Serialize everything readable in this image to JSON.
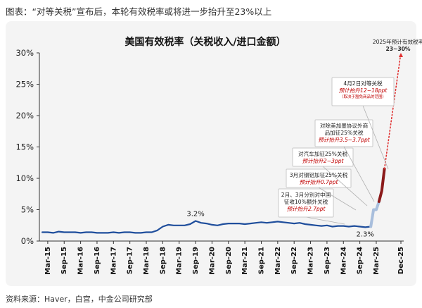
{
  "caption": "图表：“对等关税”宣布后，本轮有效税率或将进一步抬升至23%以上",
  "source": "资料来源：Haver，白宫，中金公司研究部",
  "chart_data": {
    "type": "line",
    "title": "美国有效税率（关税收入/进口金额）",
    "ylim": [
      0,
      30
    ],
    "y_ticks": [
      "0%",
      "5%",
      "10%",
      "15%",
      "20%",
      "25%",
      "30%"
    ],
    "x_ticks": [
      "Mar-15",
      "Sep-15",
      "Mar-16",
      "Sep-16",
      "Mar-17",
      "Sep-17",
      "Mar-18",
      "Sep-18",
      "Mar-19",
      "Sep-19",
      "Mar-20",
      "Sep-20",
      "Mar-21",
      "Sep-21",
      "Mar-22",
      "Sep-22",
      "Mar-23",
      "Sep-23",
      "Mar-24",
      "Sep-24",
      "Mar-25",
      "Dec-25"
    ],
    "grid": false,
    "series": [
      {
        "role": "history",
        "color": "#1f4e9c",
        "x": [
          "2015-01",
          "2015-03",
          "2015-05",
          "2015-07",
          "2015-09",
          "2015-11",
          "2016-01",
          "2016-03",
          "2016-05",
          "2016-07",
          "2016-09",
          "2016-11",
          "2017-01",
          "2017-03",
          "2017-05",
          "2017-07",
          "2017-09",
          "2017-11",
          "2018-01",
          "2018-03",
          "2018-05",
          "2018-07",
          "2018-09",
          "2018-11",
          "2019-01",
          "2019-03",
          "2019-05",
          "2019-07",
          "2019-09",
          "2019-11",
          "2020-01",
          "2020-03",
          "2020-05",
          "2020-07",
          "2020-09",
          "2020-11",
          "2021-01",
          "2021-03",
          "2021-05",
          "2021-07",
          "2021-09",
          "2021-11",
          "2022-01",
          "2022-03",
          "2022-05",
          "2022-07",
          "2022-09",
          "2022-11",
          "2023-01",
          "2023-03",
          "2023-05",
          "2023-07",
          "2023-09",
          "2023-11",
          "2024-01",
          "2024-03",
          "2024-05",
          "2024-07",
          "2024-09",
          "2024-11",
          "2025-01"
        ],
        "y": [
          1.4,
          1.4,
          1.3,
          1.5,
          1.4,
          1.4,
          1.4,
          1.3,
          1.4,
          1.4,
          1.3,
          1.3,
          1.3,
          1.4,
          1.3,
          1.4,
          1.4,
          1.3,
          1.3,
          1.4,
          1.4,
          1.7,
          2.3,
          2.6,
          2.5,
          2.5,
          2.5,
          2.7,
          3.2,
          2.9,
          2.8,
          2.6,
          2.5,
          2.7,
          2.8,
          2.8,
          2.8,
          2.7,
          2.8,
          2.9,
          3.0,
          2.9,
          3.0,
          3.1,
          3.0,
          2.9,
          2.8,
          2.9,
          2.7,
          2.6,
          2.5,
          2.4,
          2.5,
          2.3,
          2.4,
          2.4,
          2.3,
          2.4,
          2.3,
          2.2,
          2.3
        ]
      },
      {
        "role": "projection-tariff-steps",
        "color": "#a8bedc",
        "x": [
          "2025-01",
          "2025-02",
          "2025-03",
          "2025-04"
        ],
        "y": [
          2.3,
          5.0,
          5.0,
          6.3
        ]
      },
      {
        "role": "projection-reciprocal",
        "color": "#8b1a1a",
        "x": [
          "2025-04",
          "2025-05",
          "2025-06"
        ],
        "y": [
          6.3,
          8.0,
          11.5
        ]
      },
      {
        "role": "projection-target",
        "color": "#e03030",
        "style": "dotted",
        "x": [
          "2025-06",
          "2025-12"
        ],
        "y": [
          11.5,
          30.0
        ]
      }
    ],
    "data_labels": [
      {
        "text": "3.2%",
        "x": "2019-09",
        "y": 3.2
      },
      {
        "text": "2.3%",
        "x": "2025-01",
        "y": 2.3
      }
    ],
    "annotations": [
      {
        "lines": [
          "2025年预计有效税率",
          "23~30%"
        ],
        "x": "2025-12",
        "y": 30
      }
    ],
    "callouts": [
      {
        "id": "feb-mar",
        "black": [
          "2月、3月分别对中国",
          "征收10%额外关税"
        ],
        "red": [
          "预计抬升2.7ppt"
        ],
        "small": []
      },
      {
        "id": "steel",
        "black": [
          "3月对钢铝加征25%关税"
        ],
        "red": [
          "预计抬升0.7ppt"
        ],
        "small": []
      },
      {
        "id": "auto",
        "black": [
          "对汽车加征25%关税"
        ],
        "red": [
          "预计抬升2~3ppt"
        ],
        "small": []
      },
      {
        "id": "usmca",
        "black": [
          "对除美加墨协议外商",
          "品加征25%关税"
        ],
        "red": [
          "预计抬升3.5~3.7ppt"
        ],
        "small": []
      },
      {
        "id": "reciprocal",
        "black": [
          "4月2日对等关税"
        ],
        "red": [
          "预计抬升12~18ppt"
        ],
        "small": [
          "（取决于豁免商品的范围）"
        ]
      }
    ]
  }
}
